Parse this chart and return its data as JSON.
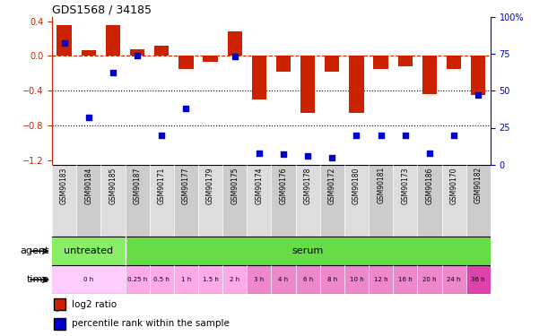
{
  "title": "GDS1568 / 34185",
  "samples": [
    "GSM90183",
    "GSM90184",
    "GSM90185",
    "GSM90187",
    "GSM90171",
    "GSM90177",
    "GSM90179",
    "GSM90175",
    "GSM90174",
    "GSM90176",
    "GSM90178",
    "GSM90172",
    "GSM90180",
    "GSM90181",
    "GSM90173",
    "GSM90186",
    "GSM90170",
    "GSM90182"
  ],
  "log2_ratio": [
    0.35,
    0.07,
    0.35,
    0.08,
    0.12,
    -0.15,
    -0.07,
    0.28,
    -0.5,
    -0.18,
    -0.65,
    -0.18,
    -0.65,
    -0.15,
    -0.12,
    -0.44,
    -0.15,
    -0.45
  ],
  "percentile_rank": [
    82,
    32,
    62,
    74,
    20,
    38,
    null,
    73,
    8,
    7,
    6,
    5,
    20,
    20,
    20,
    8,
    20,
    47
  ],
  "ylim_left": [
    -1.25,
    0.45
  ],
  "ylim_right": [
    0,
    100
  ],
  "yticks_left": [
    0.4,
    0.0,
    -0.4,
    -0.8,
    -1.2
  ],
  "yticks_right": [
    100,
    75,
    50,
    25,
    0
  ],
  "dotted_lines": [
    -0.4,
    -0.8
  ],
  "bar_color": "#cc2200",
  "scatter_color": "#0000cc",
  "bar_width": 0.6,
  "tick_label_color_left": "#cc2200",
  "tick_label_color_right": "#0000cc",
  "legend_red": "log2 ratio",
  "legend_blue": "percentile rank within the sample",
  "background_color": "#ffffff",
  "agent_untreated_color": "#88ee66",
  "agent_serum_color": "#66dd44",
  "time_color_light": "#ffccff",
  "time_color_mid": "#ffaadd",
  "time_color_dark": "#ee88cc",
  "time_color_darkest": "#dd44aa",
  "sample_bg_even": "#dddddd",
  "sample_bg_odd": "#cccccc"
}
